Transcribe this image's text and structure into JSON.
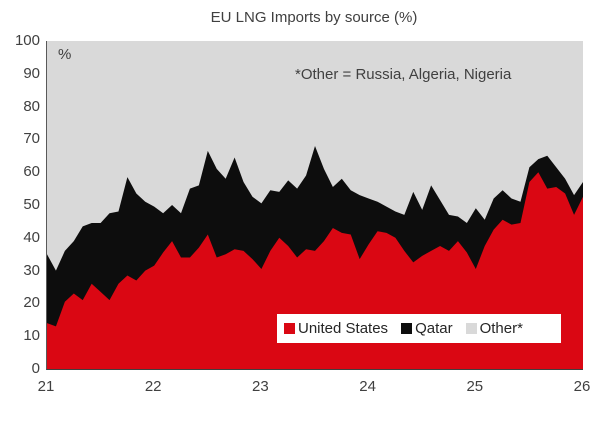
{
  "colors": {
    "united_states": "#da0713",
    "qatar": "#0d0d0d",
    "other": "#d9d9d9",
    "text": "#404040",
    "plot_background": "#d9d9d9"
  },
  "chart_data": {
    "type": "area",
    "stacked": true,
    "title": "EU LNG Imports by source (%)",
    "unit_label": "%",
    "annotation": "*Other = Russia, Algeria, Nigeria",
    "xlabel": "",
    "ylabel": "%",
    "xlim": [
      21,
      26
    ],
    "ylim": [
      0,
      100
    ],
    "x_ticks": [
      "21",
      "22",
      "23",
      "24",
      "25",
      "26"
    ],
    "y_ticks": [
      "0",
      "10",
      "20",
      "30",
      "40",
      "50",
      "60",
      "70",
      "80",
      "90",
      "100"
    ],
    "x_note": "monthly points from year 21 (2021) to 26 (2026), 61 points",
    "legend_position": "inside-bottom",
    "legend": [
      {
        "label": "United States",
        "color": "#da0713"
      },
      {
        "label": "Qatar",
        "color": "#0d0d0d"
      },
      {
        "label": "Other*",
        "color": "#d9d9d9"
      }
    ],
    "series": [
      {
        "name": "United States",
        "color": "#da0713",
        "values": [
          14,
          13,
          20.5,
          23,
          21,
          26,
          23.5,
          21,
          26,
          28.5,
          27,
          30,
          31.5,
          35.5,
          39,
          34,
          34,
          37,
          41,
          34,
          35,
          36.5,
          36,
          33.5,
          30.5,
          36,
          40,
          37.5,
          34,
          36.5,
          36,
          39,
          43,
          41.5,
          41,
          33.5,
          38,
          42,
          41.5,
          40,
          36,
          32.5,
          34.5,
          36,
          37.5,
          36,
          39,
          35.5,
          30.5,
          37.5,
          42.5,
          45.5,
          44,
          44.5,
          57,
          60,
          55,
          55.5,
          53.5,
          47,
          52.5
        ]
      },
      {
        "name": "Qatar",
        "color": "#0d0d0d",
        "values": [
          21,
          17,
          15.5,
          16,
          22.5,
          18.5,
          21,
          26.5,
          22,
          30,
          26.5,
          21,
          18,
          12,
          11,
          13.5,
          21,
          19,
          25.5,
          27,
          23,
          28,
          21,
          19,
          20,
          18.5,
          14,
          20,
          21,
          22.5,
          32,
          22,
          12.5,
          16.5,
          13.5,
          19.5,
          14,
          9,
          8,
          8,
          11,
          21.5,
          14,
          20,
          14,
          11,
          7.5,
          9,
          18.5,
          8,
          9.5,
          9,
          8,
          6.5,
          4.5,
          4,
          10,
          6,
          4.5,
          6,
          4.5
        ]
      },
      {
        "name": "Other*",
        "color": "#d9d9d9",
        "values": [
          65,
          70,
          64,
          61,
          56.5,
          55.5,
          55.5,
          52.5,
          52,
          41.5,
          46.5,
          49,
          50.5,
          52.5,
          50,
          52.5,
          45,
          44,
          33.5,
          39,
          42,
          35.5,
          43,
          47.5,
          49.5,
          45.5,
          46,
          42.5,
          45,
          41,
          32,
          39,
          44.5,
          42,
          45.5,
          47,
          48,
          49,
          50.5,
          52,
          53,
          46,
          51.5,
          44,
          48.5,
          53,
          53.5,
          55.5,
          51,
          54.5,
          48,
          45.5,
          48,
          49,
          38.5,
          36,
          35,
          38.5,
          42,
          47,
          43
        ]
      }
    ]
  }
}
